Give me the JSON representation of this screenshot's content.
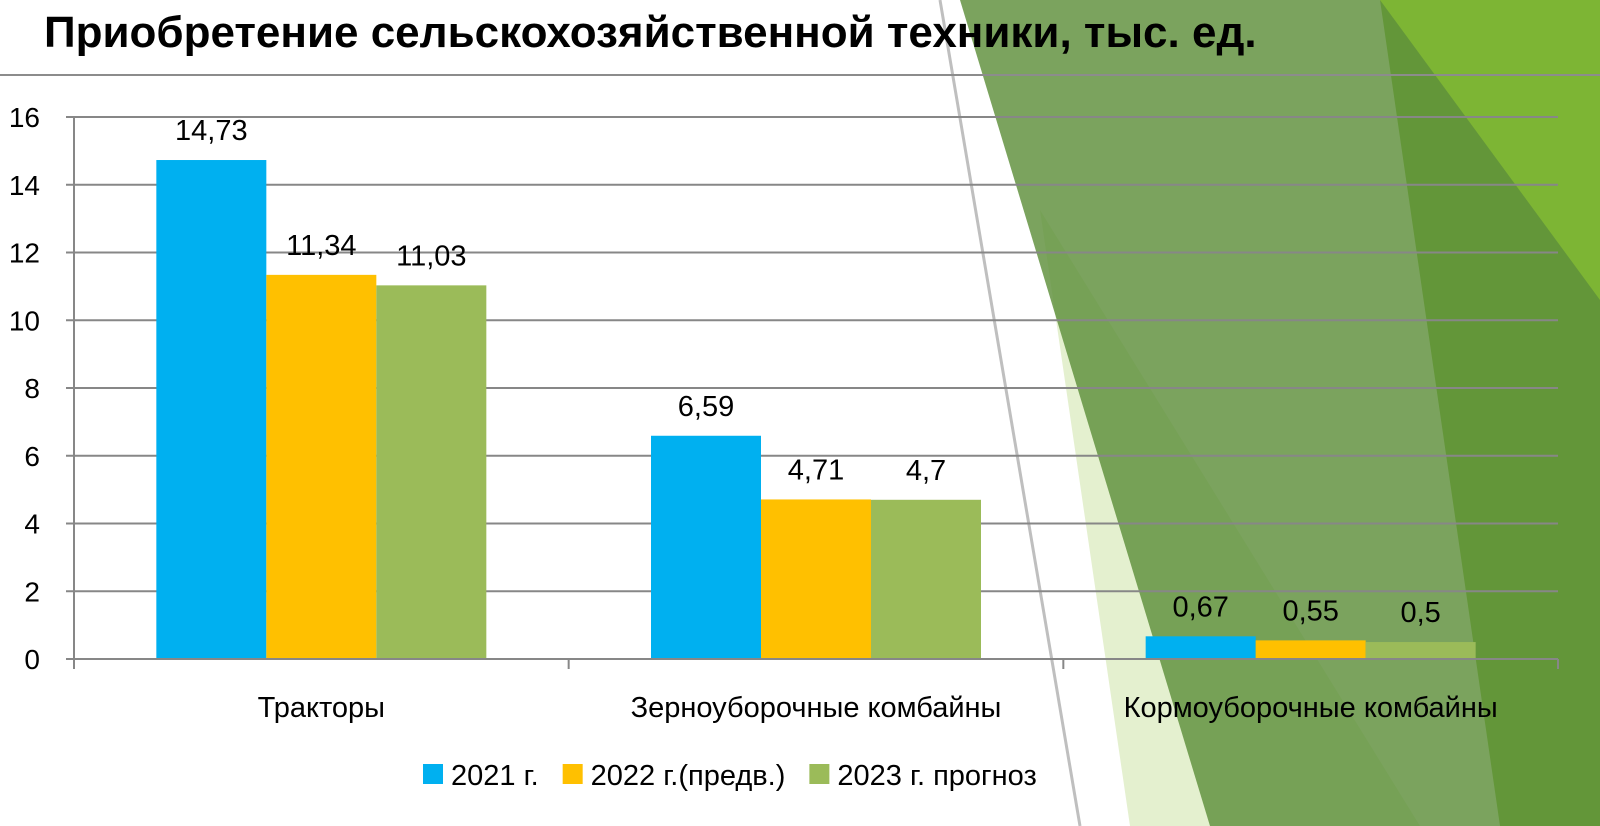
{
  "title": "Приобретение сельскохозяйственной техники, тыс. ед.",
  "colors": {
    "series_2021": "#00B0F0",
    "series_2022": "#FFC000",
    "series_2023": "#9BBB59",
    "grid": "#878787",
    "deco_dark": "#5E8F3A",
    "deco_mid": "#7DB534",
    "deco_light": "#E4F0CF"
  },
  "chart_data": {
    "type": "bar",
    "title": "Приобретение сельскохозяйственной техники, тыс. ед.",
    "categories": [
      "Тракторы",
      "Зерноуборочные комбайны",
      "Кормоуборочные комбайны"
    ],
    "series": [
      {
        "name": "2021 г.",
        "values": [
          14.73,
          6.59,
          0.67
        ],
        "labels": [
          "14,73",
          "6,59",
          "0,67"
        ]
      },
      {
        "name": "2022 г.(предв.)",
        "values": [
          11.34,
          4.71,
          0.55
        ],
        "labels": [
          "11,34",
          "4,71",
          "0,55"
        ]
      },
      {
        "name": "2023 г. прогноз",
        "values": [
          11.03,
          4.7,
          0.5
        ],
        "labels": [
          "11,03",
          "4,7",
          "0,5"
        ]
      }
    ],
    "yticks": [
      "0",
      "2",
      "4",
      "6",
      "8",
      "10",
      "12",
      "14",
      "16"
    ],
    "ylim": [
      0,
      16
    ],
    "xlabel": "",
    "ylabel": "",
    "grid": true,
    "legend_position": "bottom"
  }
}
